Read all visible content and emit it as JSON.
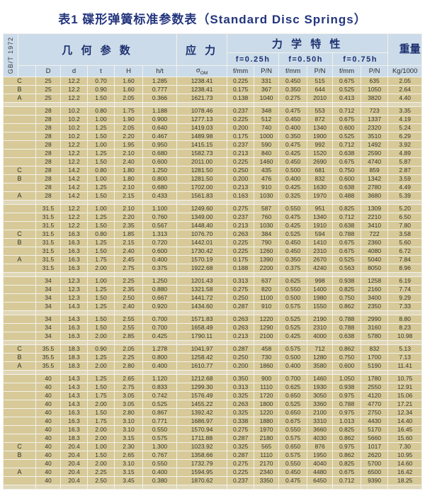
{
  "title": "表1 碟形弹簧标准参数表（Standard Disc Springs）",
  "side_label": "GB/T 1972",
  "colors": {
    "title_text": "#23357d",
    "header_bg": "#cbdbe9",
    "header_text": "#1d3070",
    "row_bg": "#d7ca98",
    "separator_bg": "#e0d7b8",
    "grid": "#f3f1ea"
  },
  "table": {
    "header": {
      "geometry": "几 何 参 数",
      "stress": "应 力",
      "mechanical": "力 学 特 性",
      "weight": "重量",
      "deflections": [
        "f=0.25h",
        "f=0.50h",
        "f=0.75h"
      ],
      "columns_geo": [
        "D",
        "d",
        "t",
        "H",
        "h/t"
      ],
      "sigma": {
        "base": "σ",
        "sub": "OM"
      },
      "columns_mech": [
        "f/mm",
        "P/N",
        "f/mm",
        "P/N",
        "f/mm",
        "P/N"
      ],
      "column_weight": "Kg/1000"
    },
    "rows": [
      {
        "t": "r",
        "l": "C",
        "v": [
          "25",
          "12.2",
          "0.70",
          "1.60",
          "1.285",
          "1238.41",
          "0.225",
          "331",
          "0.450",
          "515",
          "0.675",
          "635",
          "2.05"
        ]
      },
      {
        "t": "r",
        "l": "B",
        "v": [
          "25",
          "12.2",
          "0.90",
          "1.60",
          "0.777",
          "1238.41",
          "0.175",
          "367",
          "0.350",
          "644",
          "0.525",
          "1050",
          "2.64"
        ]
      },
      {
        "t": "r",
        "l": "A",
        "v": [
          "25",
          "12.2",
          "1.50",
          "2.05",
          "0.366",
          "1621.73",
          "0.138",
          "1040",
          "0.275",
          "2010",
          "0.413",
          "3820",
          "4.40"
        ]
      },
      {
        "t": "s"
      },
      {
        "t": "r",
        "l": "",
        "v": [
          "28",
          "10.2",
          "0.80",
          "1.75",
          "1.188",
          "1078.46",
          "0.237",
          "348",
          "0.475",
          "553",
          "0.712",
          "723",
          "3.35"
        ]
      },
      {
        "t": "r",
        "l": "",
        "v": [
          "28",
          "10.2",
          "1.00",
          "1.90",
          "0.900",
          "1277.13",
          "0.225",
          "512",
          "0.450",
          "872",
          "0.675",
          "1337",
          "4.19"
        ]
      },
      {
        "t": "r",
        "l": "",
        "v": [
          "28",
          "10.2",
          "1.25",
          "2.05",
          "0.640",
          "1419.03",
          "0.200",
          "740",
          "0.400",
          "1340",
          "0.600",
          "2320",
          "5.24"
        ]
      },
      {
        "t": "r",
        "l": "",
        "v": [
          "28",
          "10.2",
          "1.50",
          "2.20",
          "0.467",
          "1489.98",
          "0.175",
          "1000",
          "0.350",
          "1900",
          "0.525",
          "3510",
          "6.29"
        ]
      },
      {
        "t": "r",
        "l": "",
        "v": [
          "28",
          "12.2",
          "1.00",
          "1.95",
          "0.950",
          "1415.15",
          "0.237",
          "590",
          "0.475",
          "992",
          "0.712",
          "1492",
          "3.92"
        ]
      },
      {
        "t": "r",
        "l": "",
        "v": [
          "28",
          "12.2",
          "1.25",
          "2.10",
          "0.680",
          "1582.73",
          "0.213",
          "840",
          "0.425",
          "1520",
          "0.638",
          "2590",
          "4.89"
        ]
      },
      {
        "t": "r",
        "l": "",
        "v": [
          "28",
          "12.2",
          "1.50",
          "2.40",
          "0.600",
          "2011.00",
          "0.225",
          "1460",
          "0.450",
          "2690",
          "0.675",
          "4740",
          "5.87"
        ]
      },
      {
        "t": "r",
        "l": "C",
        "v": [
          "28",
          "14.2",
          "0.80",
          "1.80",
          "1.250",
          "1281.50",
          "0.250",
          "435",
          "0.500",
          "681",
          "0.750",
          "859",
          "2.87"
        ]
      },
      {
        "t": "r",
        "l": "B",
        "v": [
          "28",
          "14.2",
          "1.00",
          "1.80",
          "0.800",
          "1281.50",
          "0.200",
          "476",
          "0.400",
          "832",
          "0.600",
          "1342",
          "3.59"
        ]
      },
      {
        "t": "r",
        "l": "",
        "v": [
          "28",
          "14.2",
          "1.25",
          "2.10",
          "0.680",
          "1702.00",
          "0.213",
          "910",
          "0.425",
          "1630",
          "0.638",
          "2780",
          "4.49"
        ]
      },
      {
        "t": "r",
        "l": "A",
        "v": [
          "28",
          "14.2",
          "1.50",
          "2.15",
          "0.433",
          "1561.83",
          "0.163",
          "1030",
          "0.325",
          "1970",
          "0.488",
          "3680",
          "5.39"
        ]
      },
      {
        "t": "s"
      },
      {
        "t": "r",
        "l": "",
        "v": [
          "31.5",
          "12.2",
          "1.00",
          "2.10",
          "1.100",
          "1249.60",
          "0.275",
          "587",
          "0.550",
          "951",
          "0.825",
          "1309",
          "5.20"
        ]
      },
      {
        "t": "r",
        "l": "",
        "v": [
          "31.5",
          "12.2",
          "1.25",
          "2.20",
          "0.760",
          "1349.00",
          "0.237",
          "760",
          "0.475",
          "1340",
          "0.712",
          "2210",
          "6.50"
        ]
      },
      {
        "t": "r",
        "l": "",
        "v": [
          "31.5",
          "12.2",
          "1.50",
          "2.35",
          "0.567",
          "1448.40",
          "0.213",
          "1030",
          "0.425",
          "1910",
          "0.638",
          "3410",
          "7.80"
        ]
      },
      {
        "t": "r",
        "l": "C",
        "v": [
          "31.5",
          "16.3",
          "0.80",
          "1.85",
          "1.313",
          "1076.70",
          "0.263",
          "384",
          "0.525",
          "594",
          "0.788",
          "722",
          "3.58"
        ]
      },
      {
        "t": "r",
        "l": "B",
        "v": [
          "31.5",
          "16.3",
          "1.25",
          "2.15",
          "0.720",
          "1442.01",
          "0.225",
          "790",
          "0.450",
          "1410",
          "0.675",
          "2360",
          "5.60"
        ]
      },
      {
        "t": "r",
        "l": "",
        "v": [
          "31.5",
          "16.3",
          "1.50",
          "2.40",
          "0.600",
          "1730.42",
          "0.225",
          "1260",
          "0.450",
          "2310",
          "0.675",
          "4080",
          "6.72"
        ]
      },
      {
        "t": "r",
        "l": "A",
        "v": [
          "31.5",
          "16.3",
          "1.75",
          "2.45",
          "0.400",
          "1570.19",
          "0.175",
          "1390",
          "0.350",
          "2670",
          "0.525",
          "5040",
          "7.84"
        ]
      },
      {
        "t": "r",
        "l": "",
        "v": [
          "31.5",
          "16.3",
          "2.00",
          "2.75",
          "0.375",
          "1922.68",
          "0.188",
          "2200",
          "0.375",
          "4240",
          "0.563",
          "8050",
          "8.96"
        ]
      },
      {
        "t": "s"
      },
      {
        "t": "r",
        "l": "",
        "v": [
          "34",
          "12.3",
          "1.00",
          "2.25",
          "1.250",
          "1201.43",
          "0.313",
          "637",
          "0.625",
          "998",
          "0.938",
          "1258",
          "6.19"
        ]
      },
      {
        "t": "r",
        "l": "",
        "v": [
          "34",
          "12.3",
          "1.25",
          "2.35",
          "0.880",
          "1321.58",
          "0.275",
          "820",
          "0.550",
          "1400",
          "0.825",
          "2160",
          "7.74"
        ]
      },
      {
        "t": "r",
        "l": "",
        "v": [
          "34",
          "12.3",
          "1.50",
          "2.50",
          "0.667",
          "1441.72",
          "0.250",
          "1100",
          "0.500",
          "1980",
          "0.750",
          "3400",
          "9.29"
        ]
      },
      {
        "t": "r",
        "l": "",
        "v": [
          "34",
          "14.3",
          "1.25",
          "2.40",
          "0.920",
          "1434.60",
          "0.287",
          "910",
          "0.575",
          "1550",
          "0.862",
          "2350",
          "7.33"
        ]
      },
      {
        "t": "s"
      },
      {
        "t": "r",
        "l": "",
        "v": [
          "34",
          "14.3",
          "1.50",
          "2.55",
          "0.700",
          "1571.83",
          "0.263",
          "1220",
          "0.525",
          "2190",
          "0.788",
          "2990",
          "8.80"
        ]
      },
      {
        "t": "r",
        "l": "",
        "v": [
          "34",
          "16.3",
          "1.50",
          "2.55",
          "0.700",
          "1658.49",
          "0.263",
          "1290",
          "0.525",
          "2310",
          "0.788",
          "3160",
          "8.23"
        ]
      },
      {
        "t": "r",
        "l": "",
        "v": [
          "34",
          "16.3",
          "2.00",
          "2.85",
          "0.425",
          "1790.11",
          "0.213",
          "2100",
          "0.425",
          "4000",
          "0.638",
          "5780",
          "10.98"
        ]
      },
      {
        "t": "s"
      },
      {
        "t": "r",
        "l": "C",
        "v": [
          "35.5",
          "18.3",
          "0.90",
          "2.05",
          "1.278",
          "1041.97",
          "0.287",
          "458",
          "0.575",
          "712",
          "0.862",
          "832",
          "5.13"
        ]
      },
      {
        "t": "r",
        "l": "B",
        "v": [
          "35.5",
          "18.3",
          "1.25",
          "2.25",
          "0.800",
          "1258.42",
          "0.250",
          "730",
          "0.500",
          "1280",
          "0.750",
          "1700",
          "7.13"
        ]
      },
      {
        "t": "r",
        "l": "A",
        "v": [
          "35.5",
          "18.3",
          "2.00",
          "2.80",
          "0.400",
          "1610.77",
          "0.200",
          "1860",
          "0.400",
          "3580",
          "0.600",
          "5190",
          "11.41"
        ]
      },
      {
        "t": "s"
      },
      {
        "t": "r",
        "l": "",
        "v": [
          "40",
          "14.3",
          "1.25",
          "2.65",
          "1.120",
          "1212.68",
          "0.350",
          "900",
          "0.700",
          "1460",
          "1.050",
          "1780",
          "10.75"
        ]
      },
      {
        "t": "r",
        "l": "",
        "v": [
          "40",
          "14.3",
          "1.50",
          "2.75",
          "0.833",
          "1299.30",
          "0.313",
          "1110",
          "0.625",
          "1930",
          "0.938",
          "2550",
          "12.91"
        ]
      },
      {
        "t": "r",
        "l": "",
        "v": [
          "40",
          "14.3",
          "1.75",
          "3.05",
          "0.742",
          "1576.49",
          "0.325",
          "1720",
          "0.650",
          "3050",
          "0.975",
          "4120",
          "15.06"
        ]
      },
      {
        "t": "r",
        "l": "",
        "v": [
          "40",
          "14.3",
          "2.00",
          "3.05",
          "0.525",
          "1455.22",
          "0.263",
          "1800",
          "0.525",
          "3360",
          "0.788",
          "4770",
          "17.21"
        ]
      },
      {
        "t": "r",
        "l": "",
        "v": [
          "40",
          "16.3",
          "1.50",
          "2.80",
          "0.867",
          "1392.42",
          "0.325",
          "1220",
          "0.650",
          "2100",
          "0.975",
          "2750",
          "12.34"
        ]
      },
      {
        "t": "r",
        "l": "",
        "v": [
          "40",
          "16.3",
          "1.75",
          "3.10",
          "0.771",
          "1686.97",
          "0.338",
          "1880",
          "0.675",
          "3310",
          "1.013",
          "4430",
          "14.40"
        ]
      },
      {
        "t": "r",
        "l": "",
        "v": [
          "40",
          "16.3",
          "2.00",
          "3.10",
          "0.550",
          "1570.94",
          "0.275",
          "1970",
          "0.550",
          "3660",
          "0.825",
          "5170",
          "16.45"
        ]
      },
      {
        "t": "r",
        "l": "",
        "v": [
          "40",
          "18.3",
          "2.00",
          "3.15",
          "0.575",
          "1711.88",
          "0.287",
          "2180",
          "0.575",
          "4030",
          "0.862",
          "5660",
          "15.60"
        ]
      },
      {
        "t": "r",
        "l": "C",
        "v": [
          "40",
          "20.4",
          "1.00",
          "2.30",
          "1.300",
          "1023.92",
          "0.325",
          "565",
          "0.650",
          "876",
          "0.975",
          "1017",
          "7.30"
        ]
      },
      {
        "t": "r",
        "l": "B",
        "v": [
          "40",
          "20.4",
          "1.50",
          "2.65",
          "0.767",
          "1358.66",
          "0.287",
          "1110",
          "0.575",
          "1950",
          "0.862",
          "2620",
          "10.95"
        ]
      },
      {
        "t": "r",
        "l": "",
        "v": [
          "40",
          "20.4",
          "2.00",
          "3.10",
          "0.550",
          "1732.79",
          "0.275",
          "2170",
          "0.550",
          "4040",
          "0.825",
          "5700",
          "14.60"
        ]
      },
      {
        "t": "r",
        "l": "A",
        "v": [
          "40",
          "20.4",
          "2.25",
          "3.15",
          "0.400",
          "1594.95",
          "0.225",
          "2340",
          "0.450",
          "4480",
          "0.675",
          "6500",
          "16.42"
        ]
      },
      {
        "t": "r",
        "l": "",
        "v": [
          "40",
          "20.4",
          "2.50",
          "3.45",
          "0.380",
          "1870.62",
          "0.237",
          "3350",
          "0.475",
          "6450",
          "0.712",
          "9390",
          "18.25"
        ]
      },
      {
        "t": "s"
      }
    ]
  }
}
